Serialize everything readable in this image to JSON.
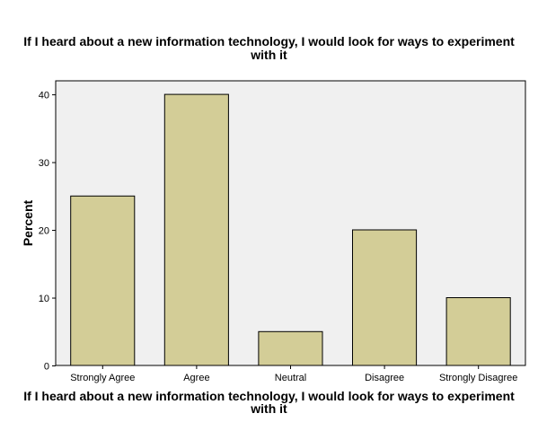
{
  "chart_data": {
    "type": "bar",
    "title": "If I heard about a new information technology, I would look for ways to experiment with it",
    "xlabel": "If I heard about a new information technology, I would look for ways to experiment with it",
    "ylabel": "Percent",
    "categories": [
      "Strongly Agree",
      "Agree",
      "Neutral",
      "Disagree",
      "Strongly Disagree"
    ],
    "values": [
      25,
      40,
      5,
      20,
      10
    ],
    "ylim": [
      0,
      42
    ],
    "yticks": [
      0,
      10,
      20,
      30,
      40
    ],
    "grid": false,
    "legend": "none",
    "colors": {
      "bar_fill": "#d3cd97",
      "bar_stroke": "#000000",
      "plot_background": "#f0f0f0",
      "plot_border": "#000000"
    }
  }
}
